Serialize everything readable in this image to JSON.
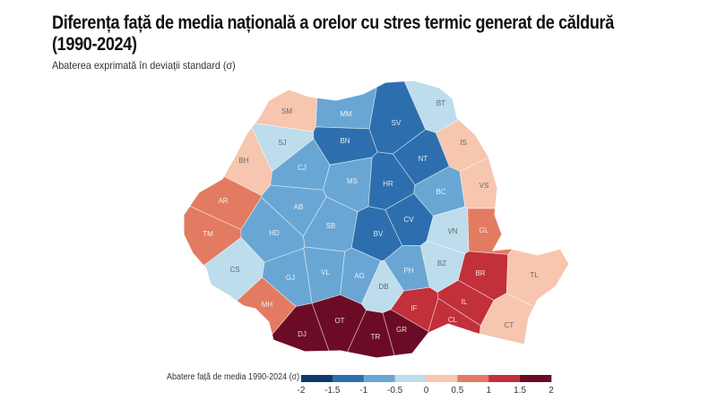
{
  "title_line1": "Diferența față de media națională a orelor cu stres termic generat de căldură",
  "title_line2": "(1990-2024)",
  "subtitle": "Abaterea exprimată în deviații standard (σ)",
  "legend": {
    "title": "Abatere față de media 1990-2024 (σ)",
    "ticks": [
      "-2",
      "-1.5",
      "-1",
      "-0.5",
      "0",
      "0.5",
      "1",
      "1.5",
      "2"
    ],
    "breaks": [
      -2,
      -1.5,
      -1,
      -0.5,
      0,
      0.5,
      1,
      1.5,
      2
    ],
    "colors": [
      "#0c3b6c",
      "#2d6fae",
      "#6aa6d3",
      "#bddcec",
      "#f7c6ae",
      "#e27b62",
      "#c2303a",
      "#6c0b25"
    ]
  },
  "counties": [
    {
      "code": "SM",
      "value": 0.3
    },
    {
      "code": "MM",
      "value": -0.7
    },
    {
      "code": "BT",
      "value": -0.3
    },
    {
      "code": "SJ",
      "value": -0.3
    },
    {
      "code": "BN",
      "value": -1.2
    },
    {
      "code": "SV",
      "value": -1.2
    },
    {
      "code": "IS",
      "value": 0.3
    },
    {
      "code": "BH",
      "value": 0.3
    },
    {
      "code": "CJ",
      "value": -0.7
    },
    {
      "code": "NT",
      "value": -1.2
    },
    {
      "code": "MS",
      "value": -0.7
    },
    {
      "code": "HR",
      "value": -1.2
    },
    {
      "code": "BC",
      "value": -0.7
    },
    {
      "code": "AR",
      "value": 0.7
    },
    {
      "code": "AB",
      "value": -0.7
    },
    {
      "code": "VS",
      "value": 0.3
    },
    {
      "code": "SB",
      "value": -0.7
    },
    {
      "code": "CV",
      "value": -1.2
    },
    {
      "code": "TM",
      "value": 0.7
    },
    {
      "code": "HD",
      "value": -0.7
    },
    {
      "code": "BV",
      "value": -1.2
    },
    {
      "code": "VN",
      "value": -0.3
    },
    {
      "code": "GL",
      "value": 0.7
    },
    {
      "code": "CS",
      "value": -0.3
    },
    {
      "code": "BZ",
      "value": -0.3
    },
    {
      "code": "BR",
      "value": 1.2
    },
    {
      "code": "TL",
      "value": 0.3
    },
    {
      "code": "GJ",
      "value": -0.7
    },
    {
      "code": "VL",
      "value": -0.7
    },
    {
      "code": "AG",
      "value": -0.7
    },
    {
      "code": "DB",
      "value": -0.3
    },
    {
      "code": "PH",
      "value": -0.7
    },
    {
      "code": "MH",
      "value": 0.7
    },
    {
      "code": "IF",
      "value": 1.2
    },
    {
      "code": "IL",
      "value": 1.2
    },
    {
      "code": "CL",
      "value": 1.2
    },
    {
      "code": "CT",
      "value": 0.3
    },
    {
      "code": "DJ",
      "value": 1.7
    },
    {
      "code": "OT",
      "value": 1.7
    },
    {
      "code": "TR",
      "value": 1.7
    },
    {
      "code": "GR",
      "value": 1.7
    }
  ]
}
